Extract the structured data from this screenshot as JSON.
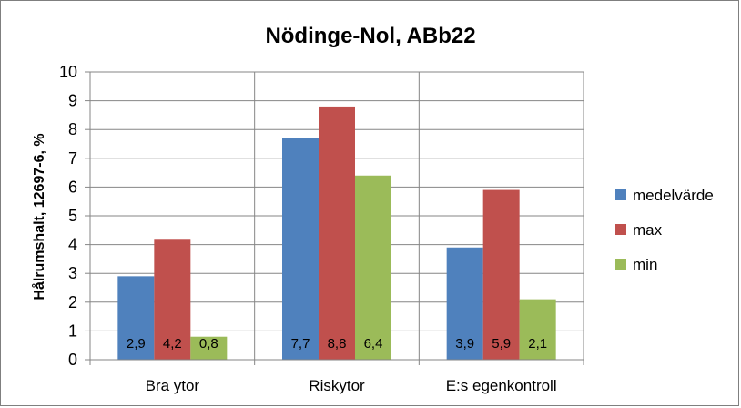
{
  "chart_data": {
    "type": "bar",
    "title": "Nödinge-Nol, ABb22",
    "xlabel": "",
    "ylabel": "Hålrumshalt, 12697-6, %",
    "ylim": [
      0,
      10
    ],
    "yticks": [
      "0",
      "1",
      "2",
      "3",
      "4",
      "5",
      "6",
      "7",
      "8",
      "9",
      "10"
    ],
    "categories": [
      "Bra ytor",
      "Riskytor",
      "E:s egenkontroll"
    ],
    "series": [
      {
        "name": "medelvärde",
        "color": "#4f81bd",
        "values": [
          2.9,
          7.7,
          3.9
        ],
        "labels": [
          "2,9",
          "7,7",
          "3,9"
        ]
      },
      {
        "name": "max",
        "color": "#c0504d",
        "values": [
          4.2,
          8.8,
          5.9
        ],
        "labels": [
          "4,2",
          "8,8",
          "5,9"
        ]
      },
      {
        "name": "min",
        "color": "#9bbb59",
        "values": [
          0.8,
          6.4,
          2.1
        ],
        "labels": [
          "0,8",
          "6,4",
          "2,1"
        ]
      }
    ],
    "grid": "horizontal-and-vertical",
    "legend": "right"
  }
}
